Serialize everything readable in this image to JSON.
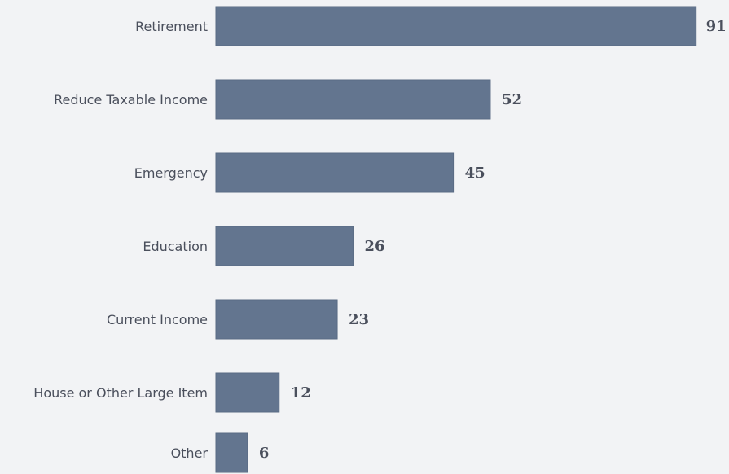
{
  "chart_data": {
    "type": "bar",
    "orientation": "horizontal",
    "categories": [
      "Retirement",
      "Reduce Taxable Income",
      "Emergency",
      "Education",
      "Current Income",
      "House or Other Large Item",
      "Other"
    ],
    "values": [
      91,
      52,
      45,
      26,
      23,
      12,
      6
    ],
    "title": "",
    "xlabel": "",
    "ylabel": "",
    "xlim": [
      0,
      91
    ],
    "grid": false,
    "legend": "none",
    "colors": {
      "bar": "#63758f",
      "bar_stroke": "#5a6b84",
      "background": "#f2f3f5",
      "text": "#4a4f5c"
    }
  }
}
